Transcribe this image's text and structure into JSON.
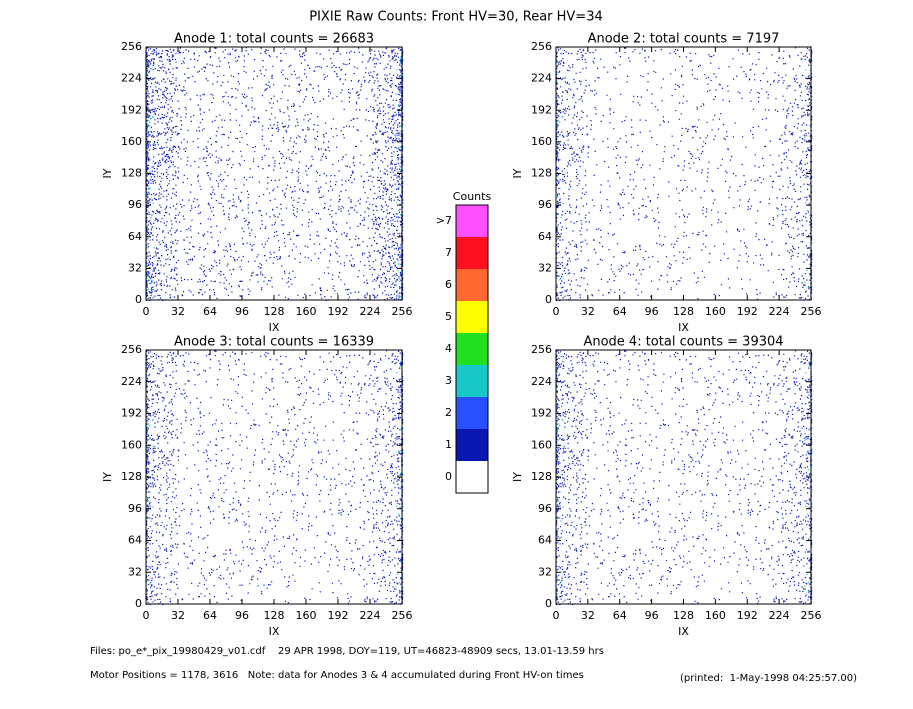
{
  "figure_title": "PIXIE Raw Counts:  Front HV=30, Rear HV=34",
  "chart_data": [
    {
      "type": "heatmap",
      "title": "Anode 1: total counts = 26683",
      "xlabel": "IX",
      "ylabel": "IY",
      "xlim": [
        0,
        256
      ],
      "ylim": [
        0,
        256
      ],
      "xticks": [
        0,
        32,
        64,
        96,
        128,
        160,
        192,
        224,
        256
      ],
      "yticks": [
        0,
        32,
        64,
        96,
        128,
        160,
        192,
        224,
        256
      ]
    },
    {
      "type": "heatmap",
      "title": "Anode 2: total counts = 7197",
      "xlabel": "IX",
      "ylabel": "IY",
      "xlim": [
        0,
        256
      ],
      "ylim": [
        0,
        256
      ],
      "xticks": [
        0,
        32,
        64,
        96,
        128,
        160,
        192,
        224,
        256
      ],
      "yticks": [
        0,
        32,
        64,
        96,
        128,
        160,
        192,
        224,
        256
      ]
    },
    {
      "type": "heatmap",
      "title": "Anode 3: total counts = 16339",
      "xlabel": "IX",
      "ylabel": "IY",
      "xlim": [
        0,
        256
      ],
      "ylim": [
        0,
        256
      ],
      "xticks": [
        0,
        32,
        64,
        96,
        128,
        160,
        192,
        224,
        256
      ],
      "yticks": [
        0,
        32,
        64,
        96,
        128,
        160,
        192,
        224,
        256
      ]
    },
    {
      "type": "heatmap",
      "title": "Anode 4: total counts = 39304",
      "xlabel": "IX",
      "ylabel": "IY",
      "xlim": [
        0,
        256
      ],
      "ylim": [
        0,
        256
      ],
      "xticks": [
        0,
        32,
        64,
        96,
        128,
        160,
        192,
        224,
        256
      ],
      "yticks": [
        0,
        32,
        64,
        96,
        128,
        160,
        192,
        224,
        256
      ]
    }
  ],
  "colorbar": {
    "title": "Counts",
    "levels": [
      {
        "label": "0",
        "color": "#ffffff"
      },
      {
        "label": "1",
        "color": "#0818b0"
      },
      {
        "label": "2",
        "color": "#2850ff"
      },
      {
        "label": "3",
        "color": "#18c8c8"
      },
      {
        "label": "4",
        "color": "#20e020"
      },
      {
        "label": "5",
        "color": "#ffff00"
      },
      {
        "label": "6",
        "color": "#ff6830"
      },
      {
        "label": "7",
        "color": "#ff1020"
      },
      {
        "label": ">7",
        "color": "#ff50ff"
      }
    ]
  },
  "footer": {
    "files": "Files: po_e*_pix_19980429_v01.cdf    29 APR 1998, DOY=119, UT=46823-48909 secs, 13.01-13.59 hrs",
    "motor": "Motor Positions = 1178, 3616   Note: data for Anodes 3 & 4 accumulated during Front HV-on times",
    "printed": "(printed:  1-May-1998 04:25:57.00)"
  }
}
